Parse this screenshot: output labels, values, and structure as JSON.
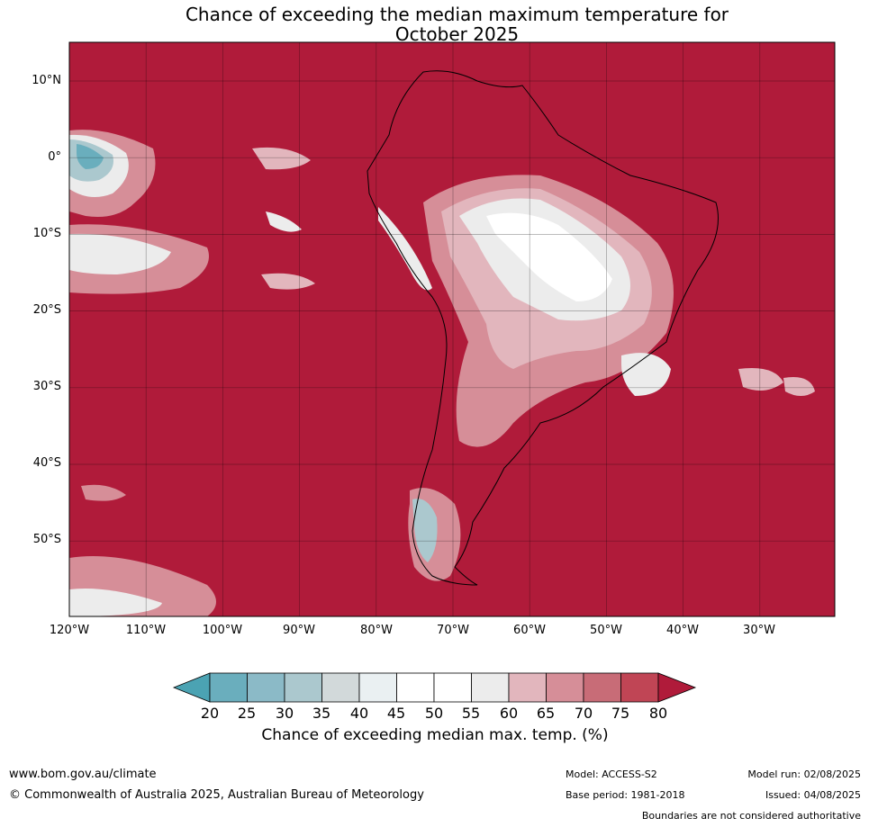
{
  "title_line1": "Chance of exceeding the median maximum temperature for",
  "title_line2": "October 2025",
  "map": {
    "lon_ticks": [
      "120°W",
      "110°W",
      "100°W",
      "90°W",
      "80°W",
      "70°W",
      "60°W",
      "50°W",
      "40°W",
      "30°W"
    ],
    "lat_ticks": [
      "10°N",
      "0°",
      "10°S",
      "20°S",
      "30°S",
      "40°S",
      "50°S"
    ],
    "background_color": "#b01b3a",
    "gridlines": true
  },
  "colorbar": {
    "ticks": [
      "20",
      "25",
      "30",
      "35",
      "40",
      "45",
      "50",
      "55",
      "60",
      "65",
      "70",
      "75",
      "80"
    ],
    "colors": [
      "#4ba3b3",
      "#6aaebd",
      "#8bbac7",
      "#abc8ce",
      "#d2d9da",
      "#eaf0f2",
      "#ffffff",
      "#ffffff",
      "#ececec",
      "#e2b6bd",
      "#d68e98",
      "#c86c77",
      "#c04555",
      "#b01b3a"
    ],
    "label": "Chance of exceeding median max. temp. (%)"
  },
  "footer": {
    "website": "www.bom.gov.au/climate",
    "copyright": "© Commonwealth of Australia 2025, Australian Bureau of Meteorology",
    "model": "Model: ACCESS-S2",
    "base_period": "Base period: 1981-2018",
    "model_run": "Model run: 02/08/2025",
    "issued": "Issued: 04/08/2025",
    "disclaimer": "Boundaries are not considered authoritative"
  }
}
